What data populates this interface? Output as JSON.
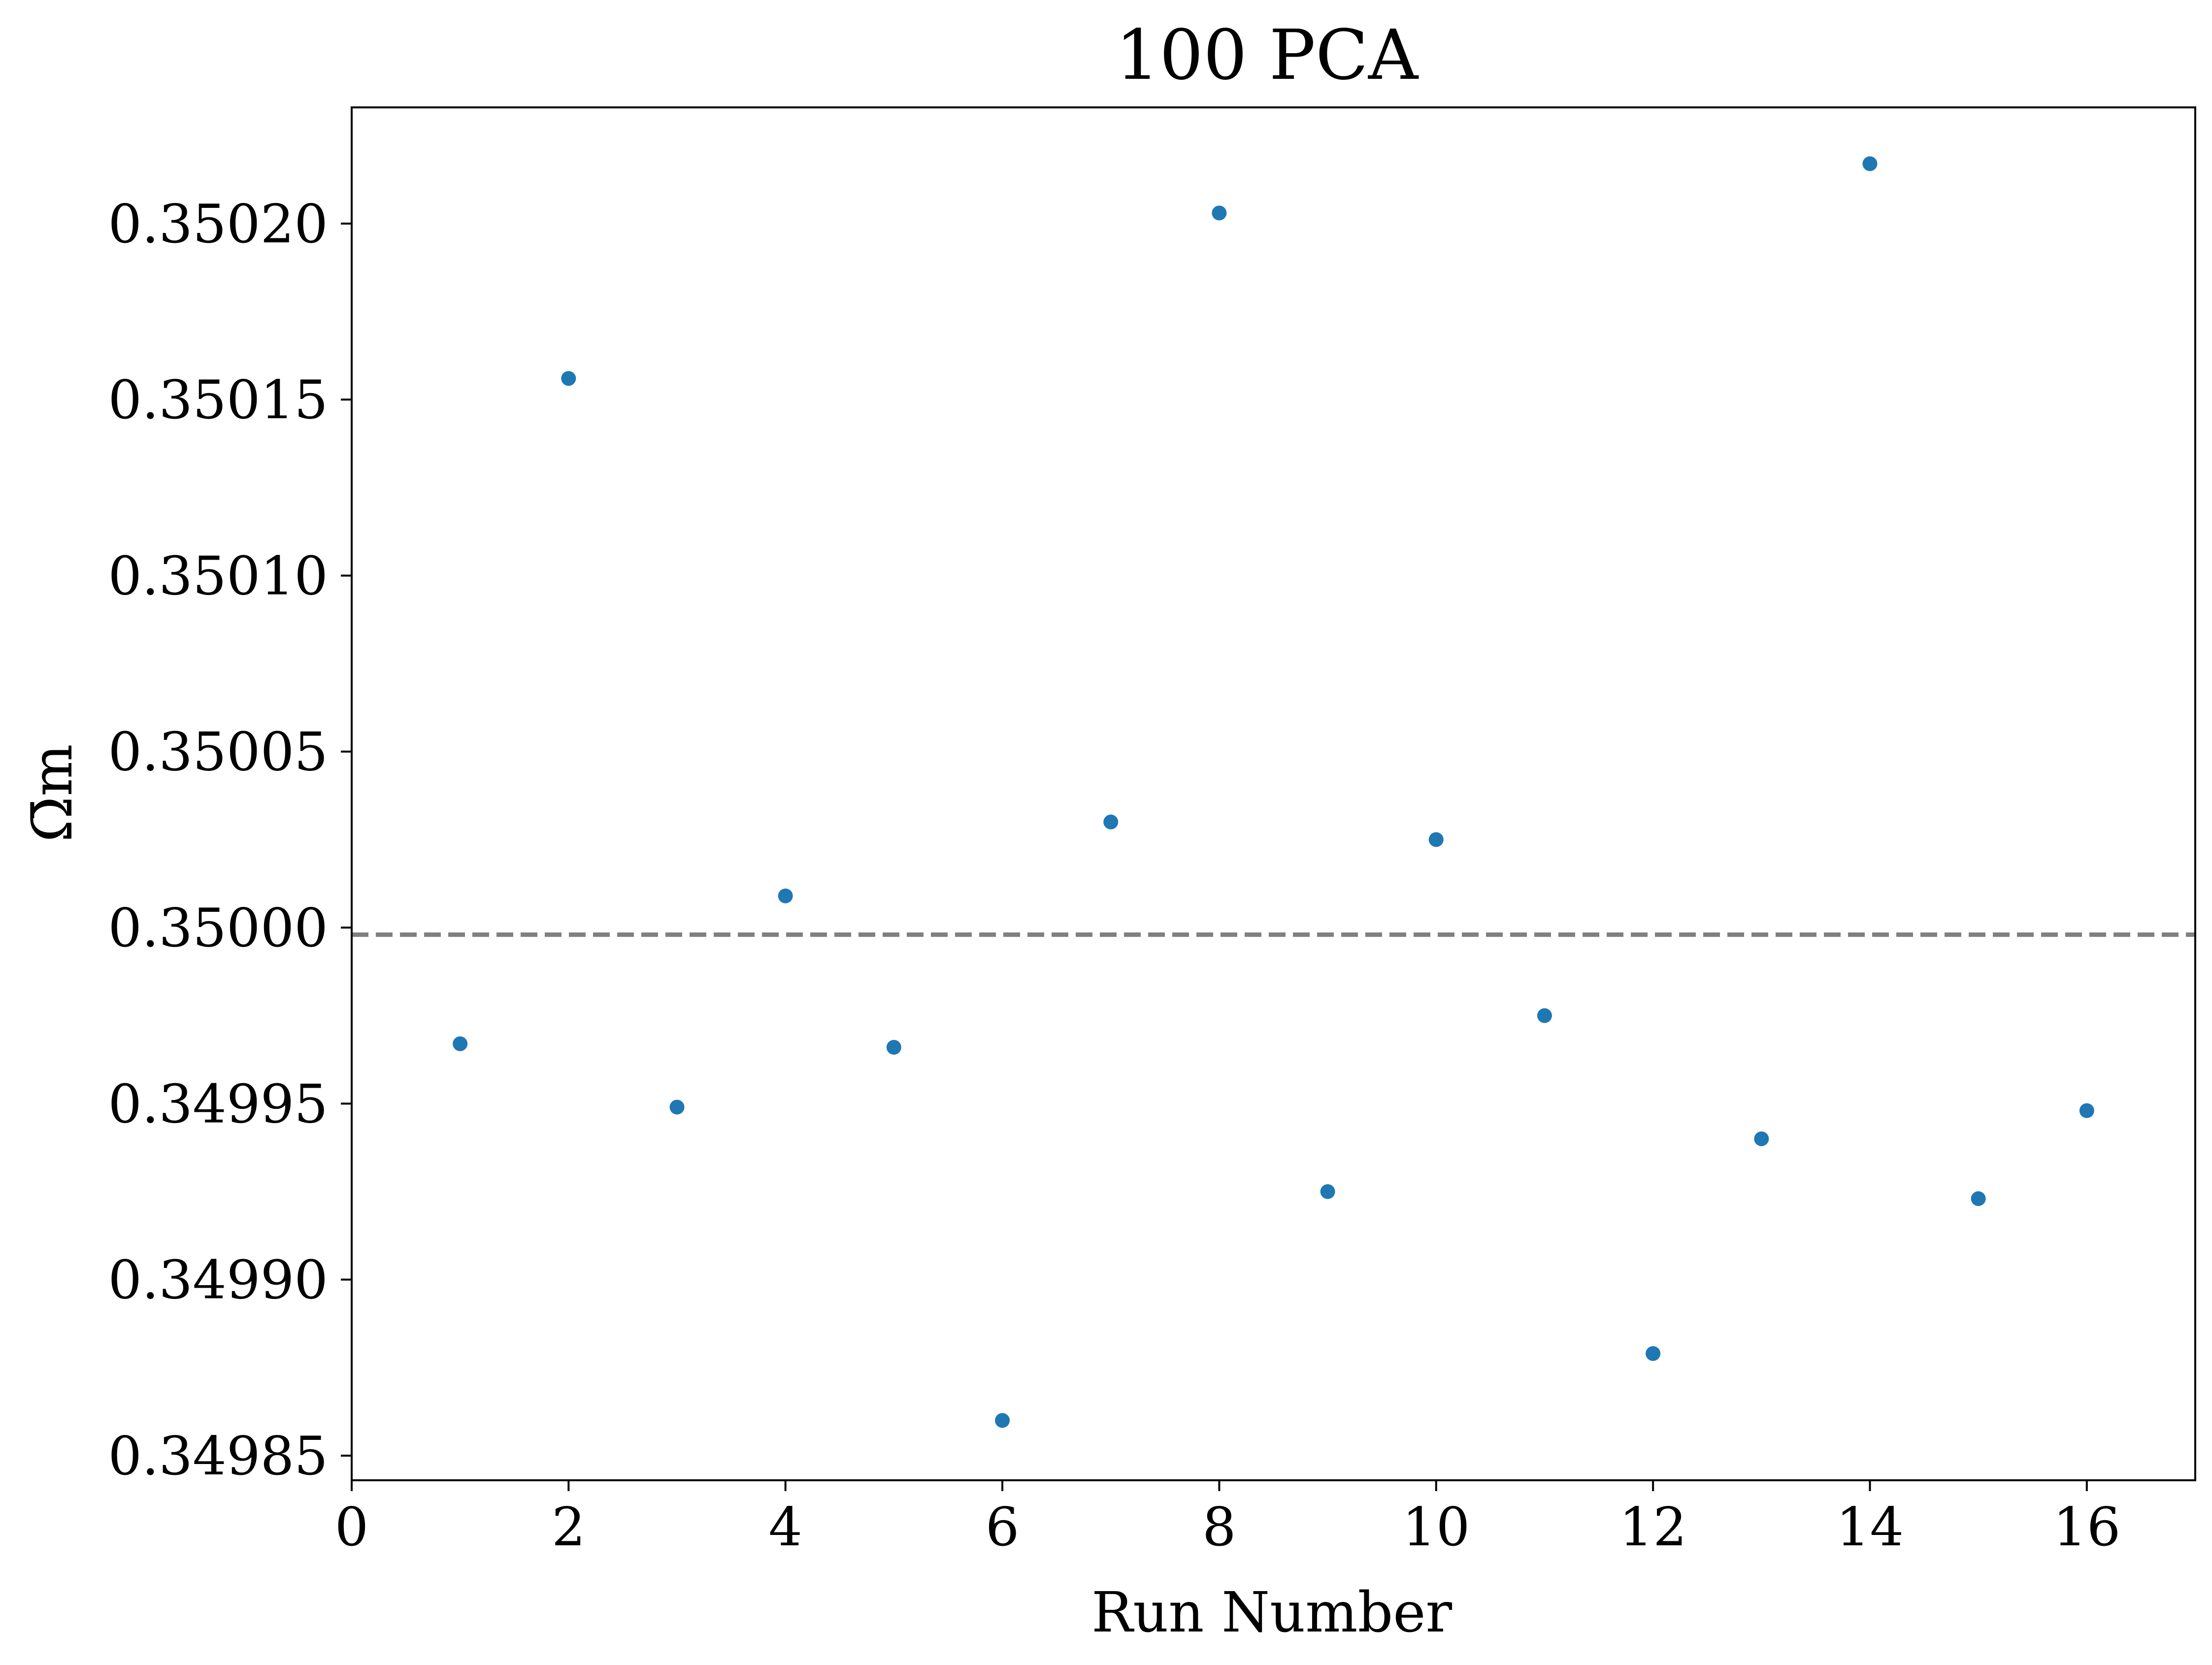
{
  "chart_data": {
    "type": "scatter",
    "title": "100 PCA",
    "xlabel": "Run Number",
    "ylabel": "Ω̄m",
    "xlim": [
      0,
      17
    ],
    "ylim": [
      0.349843,
      0.350233
    ],
    "xticks": [
      0,
      2,
      4,
      6,
      8,
      10,
      12,
      14,
      16
    ],
    "xtick_labels": [
      "0",
      "2",
      "4",
      "6",
      "8",
      "10",
      "12",
      "14",
      "16"
    ],
    "yticks": [
      0.34985,
      0.3499,
      0.34995,
      0.35,
      0.35005,
      0.3501,
      0.35015,
      0.3502
    ],
    "ytick_labels": [
      "0.34985",
      "0.34990",
      "0.34995",
      "0.35000",
      "0.35005",
      "0.35010",
      "0.35015",
      "0.35020"
    ],
    "grid": false,
    "reference_line": {
      "y": 0.349998,
      "style": "dashed",
      "color": "#808080"
    },
    "series": [
      {
        "color": "#1f77b4",
        "x": [
          1,
          2,
          3,
          4,
          5,
          6,
          7,
          8,
          9,
          10,
          11,
          12,
          13,
          14,
          15,
          16
        ],
        "y": [
          0.349967,
          0.350156,
          0.349949,
          0.350009,
          0.349966,
          0.34986,
          0.35003,
          0.350203,
          0.349925,
          0.350025,
          0.349975,
          0.349879,
          0.34994,
          0.350217,
          0.349923,
          0.349948
        ]
      }
    ]
  }
}
